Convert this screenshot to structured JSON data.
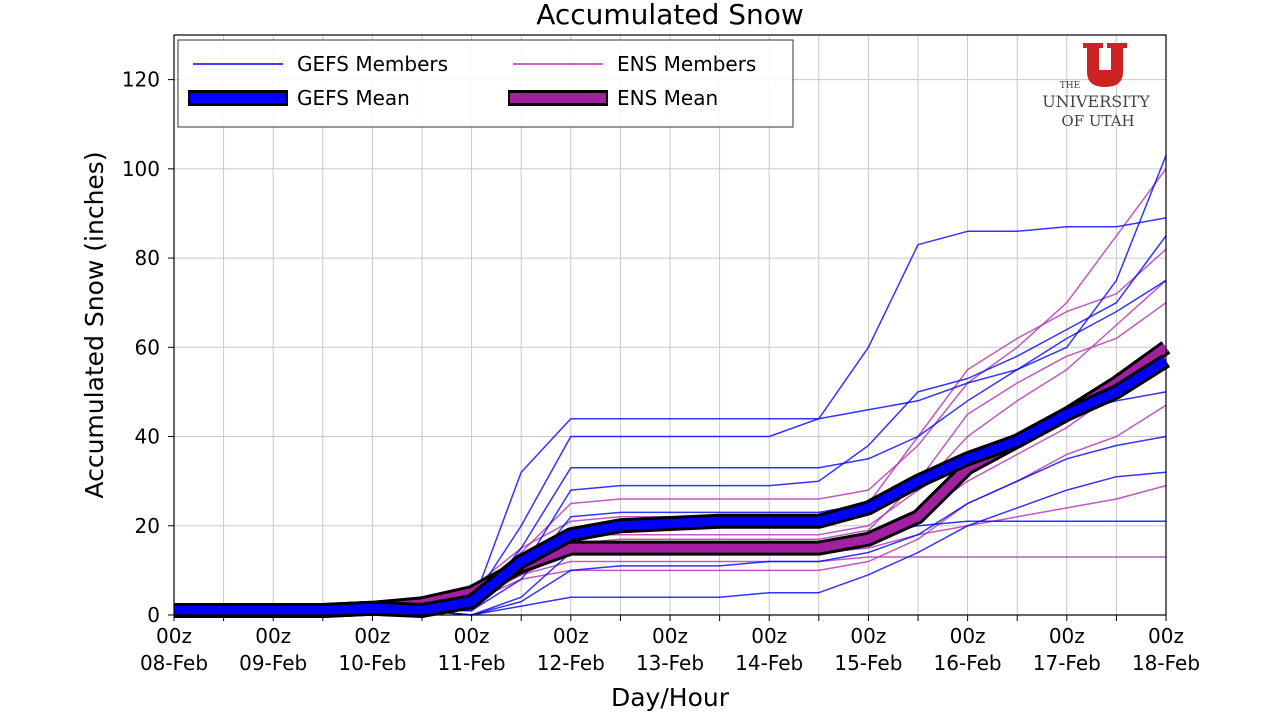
{
  "chart_data": {
    "type": "line",
    "title": "Accumulated Snow",
    "xlabel": "Day/Hour",
    "ylabel": "Accumulated Snow (inches)",
    "ylim": [
      0,
      130
    ],
    "yticks": [
      0,
      20,
      40,
      60,
      80,
      100,
      120
    ],
    "grid": true,
    "legend_placement": "top-left",
    "x": [
      "08-Feb 00z",
      "08-Feb 12z",
      "09-Feb 00z",
      "09-Feb 12z",
      "10-Feb 00z",
      "10-Feb 12z",
      "11-Feb 00z",
      "11-Feb 12z",
      "12-Feb 00z",
      "12-Feb 12z",
      "13-Feb 00z",
      "13-Feb 12z",
      "14-Feb 00z",
      "14-Feb 12z",
      "15-Feb 00z",
      "15-Feb 12z",
      "16-Feb 00z",
      "16-Feb 12z",
      "17-Feb 00z",
      "17-Feb 12z",
      "18-Feb 00z"
    ],
    "xtick_labels": [
      {
        "hour": "00z",
        "day": "08-Feb"
      },
      {
        "hour": "00z",
        "day": "09-Feb"
      },
      {
        "hour": "00z",
        "day": "10-Feb"
      },
      {
        "hour": "00z",
        "day": "11-Feb"
      },
      {
        "hour": "00z",
        "day": "12-Feb"
      },
      {
        "hour": "00z",
        "day": "13-Feb"
      },
      {
        "hour": "00z",
        "day": "14-Feb"
      },
      {
        "hour": "00z",
        "day": "15-Feb"
      },
      {
        "hour": "00z",
        "day": "16-Feb"
      },
      {
        "hour": "00z",
        "day": "17-Feb"
      },
      {
        "hour": "00z",
        "day": "18-Feb"
      }
    ],
    "legend": {
      "gefs_members": "GEFS Members",
      "ens_members": "ENS Members",
      "gefs_mean": "GEFS Mean",
      "ens_mean": "ENS Mean"
    },
    "colors": {
      "gefs": "#0000ff",
      "ens": "#b030b0",
      "ens_mean": "#a020a0",
      "mean_outline": "#000000"
    },
    "gefs_members": [
      [
        1,
        1,
        1,
        1,
        1,
        1,
        3,
        20,
        40,
        40,
        40,
        40,
        40,
        44,
        60,
        83,
        86,
        86,
        87,
        87,
        89
      ],
      [
        1,
        1,
        1,
        1,
        1,
        1,
        2,
        32,
        44,
        44,
        44,
        44,
        44,
        44,
        46,
        48,
        52,
        55,
        60,
        75,
        103
      ],
      [
        1,
        1,
        1,
        1,
        1,
        1,
        1,
        15,
        33,
        33,
        33,
        33,
        33,
        33,
        35,
        40,
        48,
        55,
        62,
        68,
        75
      ],
      [
        1,
        1,
        1,
        1,
        1,
        1,
        1,
        8,
        22,
        23,
        23,
        23,
        23,
        23,
        25,
        28,
        35,
        40,
        45,
        48,
        50
      ],
      [
        1,
        1,
        1,
        1,
        1,
        1,
        0,
        3,
        10,
        11,
        11,
        11,
        12,
        12,
        14,
        18,
        25,
        30,
        35,
        38,
        40
      ],
      [
        1,
        1,
        1,
        1,
        1,
        1,
        0,
        2,
        4,
        4,
        4,
        4,
        5,
        5,
        9,
        14,
        20,
        24,
        28,
        31,
        32
      ],
      [
        1,
        1,
        1,
        1,
        1,
        1,
        1,
        10,
        28,
        29,
        29,
        29,
        29,
        30,
        38,
        50,
        53,
        58,
        64,
        70,
        85
      ],
      [
        1,
        1,
        1,
        1,
        1,
        1,
        0,
        4,
        14,
        15,
        15,
        15,
        15,
        16,
        18,
        20,
        21,
        21,
        21,
        21,
        21
      ]
    ],
    "ens_members": [
      [
        1,
        1,
        1,
        1,
        1,
        2,
        5,
        14,
        25,
        26,
        26,
        26,
        26,
        26,
        28,
        38,
        52,
        60,
        70,
        85,
        100
      ],
      [
        1,
        1,
        1,
        1,
        1,
        3,
        6,
        12,
        18,
        18,
        18,
        18,
        18,
        18,
        20,
        28,
        40,
        48,
        55,
        65,
        75
      ],
      [
        1,
        1,
        1,
        1,
        1,
        2,
        4,
        9,
        12,
        12,
        12,
        12,
        12,
        12,
        13,
        13,
        13,
        13,
        13,
        13,
        13
      ],
      [
        1,
        1,
        1,
        1,
        1,
        2,
        5,
        11,
        16,
        16,
        16,
        16,
        16,
        16,
        17,
        22,
        30,
        36,
        42,
        50,
        60
      ],
      [
        1,
        1,
        1,
        1,
        1,
        2,
        3,
        8,
        10,
        10,
        10,
        10,
        10,
        10,
        12,
        17,
        25,
        30,
        36,
        40,
        47
      ],
      [
        1,
        1,
        1,
        1,
        1,
        2,
        6,
        15,
        21,
        22,
        22,
        22,
        22,
        22,
        25,
        40,
        55,
        62,
        68,
        72,
        82
      ],
      [
        1,
        1,
        1,
        1,
        1,
        1,
        3,
        9,
        14,
        14,
        14,
        14,
        14,
        14,
        15,
        18,
        20,
        22,
        24,
        26,
        29
      ],
      [
        1,
        1,
        1,
        1,
        1,
        2,
        5,
        12,
        16,
        17,
        17,
        17,
        17,
        17,
        19,
        30,
        45,
        52,
        58,
        62,
        70
      ]
    ],
    "gefs_mean": [
      1,
      1,
      1,
      1,
      1.5,
      1,
      3,
      12,
      18,
      20,
      20.5,
      21,
      21,
      21,
      24,
      30,
      35,
      39,
      45,
      50,
      57
    ],
    "ens_mean": [
      1,
      1,
      1,
      1,
      1.5,
      2.5,
      5,
      11,
      15,
      15,
      15,
      15,
      15,
      15,
      17,
      22,
      33,
      39,
      45,
      52,
      60
    ]
  },
  "logo": {
    "line1": "THE",
    "line2": "UNIVERSITY",
    "line3": "OF UTAH",
    "color": "#cc2222"
  }
}
